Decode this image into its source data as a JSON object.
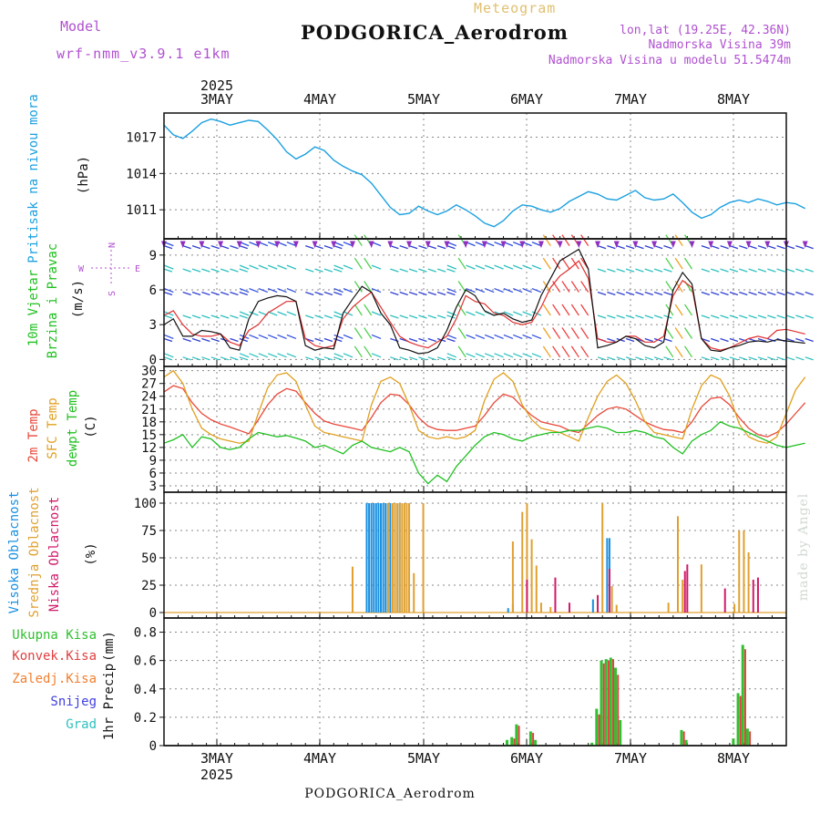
{
  "header": {
    "model_label": "Model",
    "model_name": "wrf-nmm_v3.9.1 e1km",
    "meteogram": "Meteogram",
    "station": "PODGORICA_Aerodrom",
    "lonlat": "lon,lat (19.25E, 42.36N)",
    "altitude": "Nadmorska Visina 39m",
    "model_altitude": "Nadmorska Visina u modelu 51.5474m",
    "footer_station": "PODGORICA_Aerodrom",
    "credit": "made by Angel"
  },
  "colors": {
    "pressure": "#1ba0e0",
    "temp2m": "#e8483a",
    "sfc": "#e0a020",
    "dewpt": "#20c020",
    "high_cloud": "#1a90e0",
    "mid_cloud": "#e0a030",
    "low_cloud": "#d01a6a",
    "precip_total": "#30c030",
    "precip_conv": "#e04040",
    "frozen": "#f08030",
    "snow": "#4040e0",
    "graupel": "#30c0c0",
    "grid": "#888888",
    "title_purple": "#b050d0",
    "meteogram_gold": "#e0c070"
  },
  "chart_data": [
    {
      "type": "line",
      "panel": "pressure",
      "ylabel_left": "Pritisak na nivou mora",
      "unit": "(hPa)",
      "yticks": [
        1011,
        1014,
        1017
      ],
      "ylim": [
        1008.6,
        1019.0
      ],
      "x_start_hour": 12,
      "x_step_hours": 3,
      "series": [
        {
          "name": "Pritisak na nivou mora",
          "values": [
            1018.0,
            1017.2,
            1016.9,
            1017.5,
            1018.2,
            1018.5,
            1018.3,
            1018.0,
            1018.2,
            1018.4,
            1018.3,
            1017.6,
            1016.8,
            1015.8,
            1015.2,
            1015.6,
            1016.2,
            1015.9,
            1015.1,
            1014.6,
            1014.2,
            1013.9,
            1013.2,
            1012.2,
            1011.2,
            1010.6,
            1010.7,
            1011.3,
            1010.9,
            1010.6,
            1010.9,
            1011.4,
            1011.0,
            1010.5,
            1009.9,
            1009.6,
            1010.1,
            1010.9,
            1011.4,
            1011.3,
            1011.0,
            1010.8,
            1011.1,
            1011.7,
            1012.1,
            1012.5,
            1012.3,
            1011.9,
            1011.8,
            1012.2,
            1012.6,
            1012.0,
            1011.8,
            1011.9,
            1012.3,
            1011.6,
            1010.8,
            1010.3,
            1010.6,
            1011.2,
            1011.6,
            1011.8,
            1011.6,
            1011.9,
            1011.7,
            1011.4,
            1011.6,
            1011.5,
            1011.1
          ]
        }
      ]
    },
    {
      "type": "line",
      "panel": "wind",
      "ylabel_left": "10m Vjetar",
      "ylabel_left2": "Brzina i Pravac",
      "unit": "(m/s)",
      "compass": [
        "N",
        "E",
        "S",
        "W"
      ],
      "yticks": [
        0,
        3,
        6,
        9
      ],
      "ylim": [
        -0.6,
        10.4
      ],
      "x_start_hour": 12,
      "x_step_hours": 3,
      "series": [
        {
          "name": "brzina",
          "values": [
            3.0,
            3.5,
            2.0,
            2.0,
            2.5,
            2.4,
            2.2,
            1.0,
            0.8,
            3.5,
            5.0,
            5.3,
            5.5,
            5.4,
            5.0,
            1.2,
            0.8,
            1.0,
            0.9,
            4.0,
            5.2,
            6.3,
            5.8,
            4.0,
            3.0,
            1.0,
            0.8,
            0.5,
            0.6,
            1.0,
            2.5,
            4.5,
            6.0,
            5.5,
            4.2,
            3.8,
            4.0,
            3.5,
            3.2,
            3.4,
            5.5,
            7.0,
            8.5,
            9.0,
            9.5,
            7.8,
            1.0,
            1.2,
            1.5,
            2.0,
            1.8,
            1.2,
            1.0,
            1.5,
            6.0,
            7.5,
            6.5,
            1.8,
            0.8,
            0.7,
            1.0,
            1.2,
            1.5,
            1.6,
            1.5,
            1.7,
            1.6,
            1.5,
            1.4
          ]
        },
        {
          "name": "udari",
          "values": [
            3.8,
            4.2,
            3.0,
            2.2,
            2.0,
            2.0,
            2.2,
            1.5,
            1.2,
            2.5,
            3.0,
            4.0,
            4.5,
            5.0,
            5.0,
            1.8,
            1.2,
            1.0,
            1.2,
            3.5,
            4.5,
            5.2,
            5.8,
            4.5,
            3.2,
            2.0,
            1.5,
            1.2,
            1.0,
            1.5,
            2.0,
            3.5,
            5.5,
            5.0,
            4.8,
            4.0,
            3.8,
            3.2,
            3.0,
            3.2,
            4.5,
            6.2,
            7.2,
            7.8,
            8.5,
            7.0,
            1.8,
            1.5,
            1.5,
            2.0,
            2.0,
            1.5,
            1.5,
            2.0,
            5.5,
            6.8,
            6.2,
            1.8,
            1.0,
            0.8,
            1.0,
            1.4,
            1.8,
            2.0,
            1.8,
            2.5,
            2.6,
            2.4,
            2.2
          ]
        }
      ]
    },
    {
      "type": "line",
      "panel": "temperature",
      "ylabel_left": "2m Temp",
      "ylabel_left2": "SFC Temp",
      "ylabel_left3": "dewpt Temp",
      "unit": "(C)",
      "yticks": [
        3,
        6,
        9,
        12,
        15,
        18,
        21,
        24,
        27,
        30
      ],
      "ylim": [
        1.5,
        31.0
      ],
      "x_start_hour": 12,
      "x_step_hours": 3,
      "series": [
        {
          "name": "2m Temp",
          "values": [
            25.0,
            26.5,
            25.8,
            22.5,
            20.0,
            18.5,
            17.5,
            16.8,
            16.0,
            15.2,
            18.5,
            22.0,
            24.5,
            25.8,
            25.2,
            22.5,
            20.0,
            18.2,
            17.5,
            17.0,
            16.5,
            16.0,
            19.0,
            22.5,
            24.5,
            24.2,
            22.0,
            19.0,
            17.0,
            16.2,
            16.0,
            16.0,
            16.5,
            17.0,
            19.5,
            22.5,
            24.5,
            23.8,
            21.5,
            19.5,
            18.0,
            17.5,
            17.0,
            16.0,
            15.5,
            17.5,
            19.5,
            21.0,
            21.5,
            21.0,
            19.5,
            18.0,
            17.0,
            16.2,
            16.0,
            15.5,
            18.0,
            21.5,
            23.5,
            23.8,
            22.0,
            19.0,
            16.5,
            15.0,
            14.5,
            15.5,
            17.5,
            20.0,
            22.5
          ]
        },
        {
          "name": "SFC Temp",
          "values": [
            28.5,
            30.0,
            27.0,
            21.0,
            16.5,
            15.0,
            14.0,
            13.5,
            13.0,
            13.5,
            20.0,
            26.0,
            29.0,
            29.5,
            27.5,
            22.0,
            17.0,
            15.5,
            15.0,
            14.5,
            14.0,
            13.5,
            22.0,
            27.5,
            28.5,
            27.0,
            22.0,
            16.0,
            14.5,
            14.0,
            14.5,
            14.0,
            14.5,
            16.0,
            23.0,
            28.0,
            29.5,
            27.5,
            22.0,
            18.5,
            16.5,
            16.0,
            15.5,
            14.5,
            13.5,
            19.0,
            24.0,
            27.5,
            29.0,
            27.0,
            23.0,
            18.0,
            15.5,
            15.0,
            14.5,
            14.0,
            21.0,
            26.5,
            29.0,
            28.0,
            24.0,
            17.5,
            14.5,
            13.5,
            13.0,
            14.5,
            20.0,
            25.5,
            28.5
          ]
        },
        {
          "name": "dewpt Temp",
          "values": [
            13.0,
            13.8,
            15.0,
            12.0,
            14.5,
            14.0,
            12.0,
            11.5,
            12.0,
            14.0,
            15.5,
            15.0,
            14.5,
            14.8,
            14.2,
            13.5,
            12.0,
            12.5,
            11.5,
            10.5,
            12.5,
            13.5,
            12.0,
            11.5,
            11.0,
            12.0,
            11.0,
            6.0,
            3.5,
            5.5,
            4.0,
            7.5,
            10.0,
            12.5,
            14.5,
            15.5,
            15.0,
            14.0,
            13.5,
            14.5,
            15.0,
            15.5,
            15.5,
            16.0,
            16.0,
            16.5,
            17.0,
            16.5,
            15.5,
            15.5,
            16.0,
            15.5,
            14.5,
            14.0,
            12.0,
            10.5,
            13.5,
            15.0,
            16.0,
            18.0,
            17.0,
            16.5,
            15.5,
            14.5,
            13.5,
            12.5,
            12.0,
            12.5,
            13.0
          ]
        }
      ]
    },
    {
      "type": "bar",
      "panel": "clouds",
      "ylabel_left": "Visoka Oblacnost",
      "ylabel_left2": "Srednja Oblacnost",
      "ylabel_left3": "Niska Oblacnost",
      "unit": "(%)",
      "yticks": [
        0,
        25,
        50,
        75,
        100
      ],
      "ylim": [
        -5,
        110
      ],
      "series": [
        {
          "name": "Visoka Oblacnost",
          "color_key": "high_cloud",
          "x_hours": [
            55,
            55.5,
            56,
            56.5,
            57,
            57.5,
            58,
            58.5,
            59,
            59.5,
            60,
            61,
            62,
            85,
            86,
            103,
            106,
            106.5,
            107
          ],
          "values": [
            100,
            100,
            100,
            100,
            100,
            100,
            100,
            100,
            100,
            100,
            100,
            100,
            100,
            4,
            8,
            12,
            68,
            68,
            24
          ]
        },
        {
          "name": "Srednja Oblacnost",
          "color_key": "mid_cloud",
          "x_hours": [
            52,
            59.5,
            60.5,
            61,
            61.5,
            62,
            62.5,
            63,
            63.5,
            64,
            65,
            67,
            86,
            88,
            89,
            90,
            91,
            92,
            94,
            105,
            107,
            108,
            119,
            121,
            122,
            126,
            133,
            134,
            135,
            136
          ],
          "values": [
            42,
            100,
            100,
            100,
            100,
            100,
            100,
            100,
            100,
            100,
            36,
            100,
            65,
            92,
            100,
            67,
            43,
            9,
            5,
            100,
            24,
            7,
            9,
            88,
            30,
            44,
            8,
            75,
            75,
            55
          ]
        },
        {
          "name": "Niska Oblacnost",
          "color_key": "low_cloud",
          "x_hours": [
            89,
            95,
            98,
            104,
            106.5,
            122.5,
            123,
            131,
            137,
            138
          ],
          "values": [
            30,
            32,
            9,
            16,
            40,
            38,
            44,
            22,
            30,
            32
          ]
        }
      ]
    },
    {
      "type": "bar",
      "panel": "precipitation",
      "legend": [
        "Ukupna Kisa",
        "Konvek.Kisa",
        "Zaledj.Kisa",
        "Snijeg",
        "Grad"
      ],
      "ylabel_left": "1hr Precip",
      "unit": "(mm)",
      "yticks": [
        0,
        0.2,
        0.4,
        0.6,
        0.8
      ],
      "ylim": [
        0,
        0.9
      ],
      "series": [
        {
          "name": "Ukupna Kisa",
          "color_key": "precip_total",
          "x_hours": [
            85,
            86,
            87,
            90,
            91,
            103,
            104,
            105,
            106,
            107,
            108,
            109,
            122,
            123,
            133,
            134,
            135,
            136
          ],
          "values": [
            0.04,
            0.06,
            0.15,
            0.1,
            0.04,
            0.02,
            0.26,
            0.6,
            0.61,
            0.62,
            0.55,
            0.18,
            0.11,
            0.04,
            0.05,
            0.37,
            0.71,
            0.12
          ]
        },
        {
          "name": "Konvek.Kisa",
          "color_key": "precip_conv",
          "x_hours": [
            86,
            87,
            90,
            104,
            105,
            106,
            107,
            108,
            122,
            134,
            135,
            136
          ],
          "values": [
            0.05,
            0.14,
            0.09,
            0.22,
            0.58,
            0.6,
            0.61,
            0.5,
            0.1,
            0.35,
            0.68,
            0.1
          ]
        }
      ]
    }
  ],
  "xaxis": {
    "day_labels": [
      "3MAY",
      "4MAY",
      "5MAY",
      "6MAY",
      "7MAY",
      "8MAY"
    ],
    "year": "2025"
  }
}
